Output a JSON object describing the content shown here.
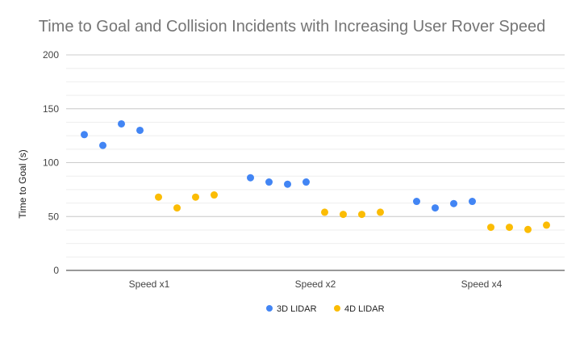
{
  "chart_data": {
    "type": "scatter",
    "title": "Time to Goal and Collision Incidents with Increasing User Rover Speed",
    "xlabel": "",
    "ylabel": "Time to Goal (s)",
    "ylim": [
      0,
      200
    ],
    "y_ticks": [
      "0",
      "50",
      "100",
      "150",
      "200"
    ],
    "y_minor_step": 12.5,
    "grid": true,
    "legend_position": "bottom",
    "categories": [
      "Speed x1",
      "Speed x2",
      "Speed x4"
    ],
    "series": [
      {
        "name": "3D LIDAR",
        "color": "#4285f4",
        "values": [
          [
            126,
            116,
            136,
            130
          ],
          [
            86,
            82,
            80,
            82
          ],
          [
            64,
            58,
            62,
            64
          ]
        ]
      },
      {
        "name": "4D LIDAR",
        "color": "#fbbc04",
        "values": [
          [
            68,
            58,
            68,
            70
          ],
          [
            54,
            52,
            52,
            54
          ],
          [
            40,
            40,
            38,
            42
          ]
        ]
      }
    ]
  }
}
